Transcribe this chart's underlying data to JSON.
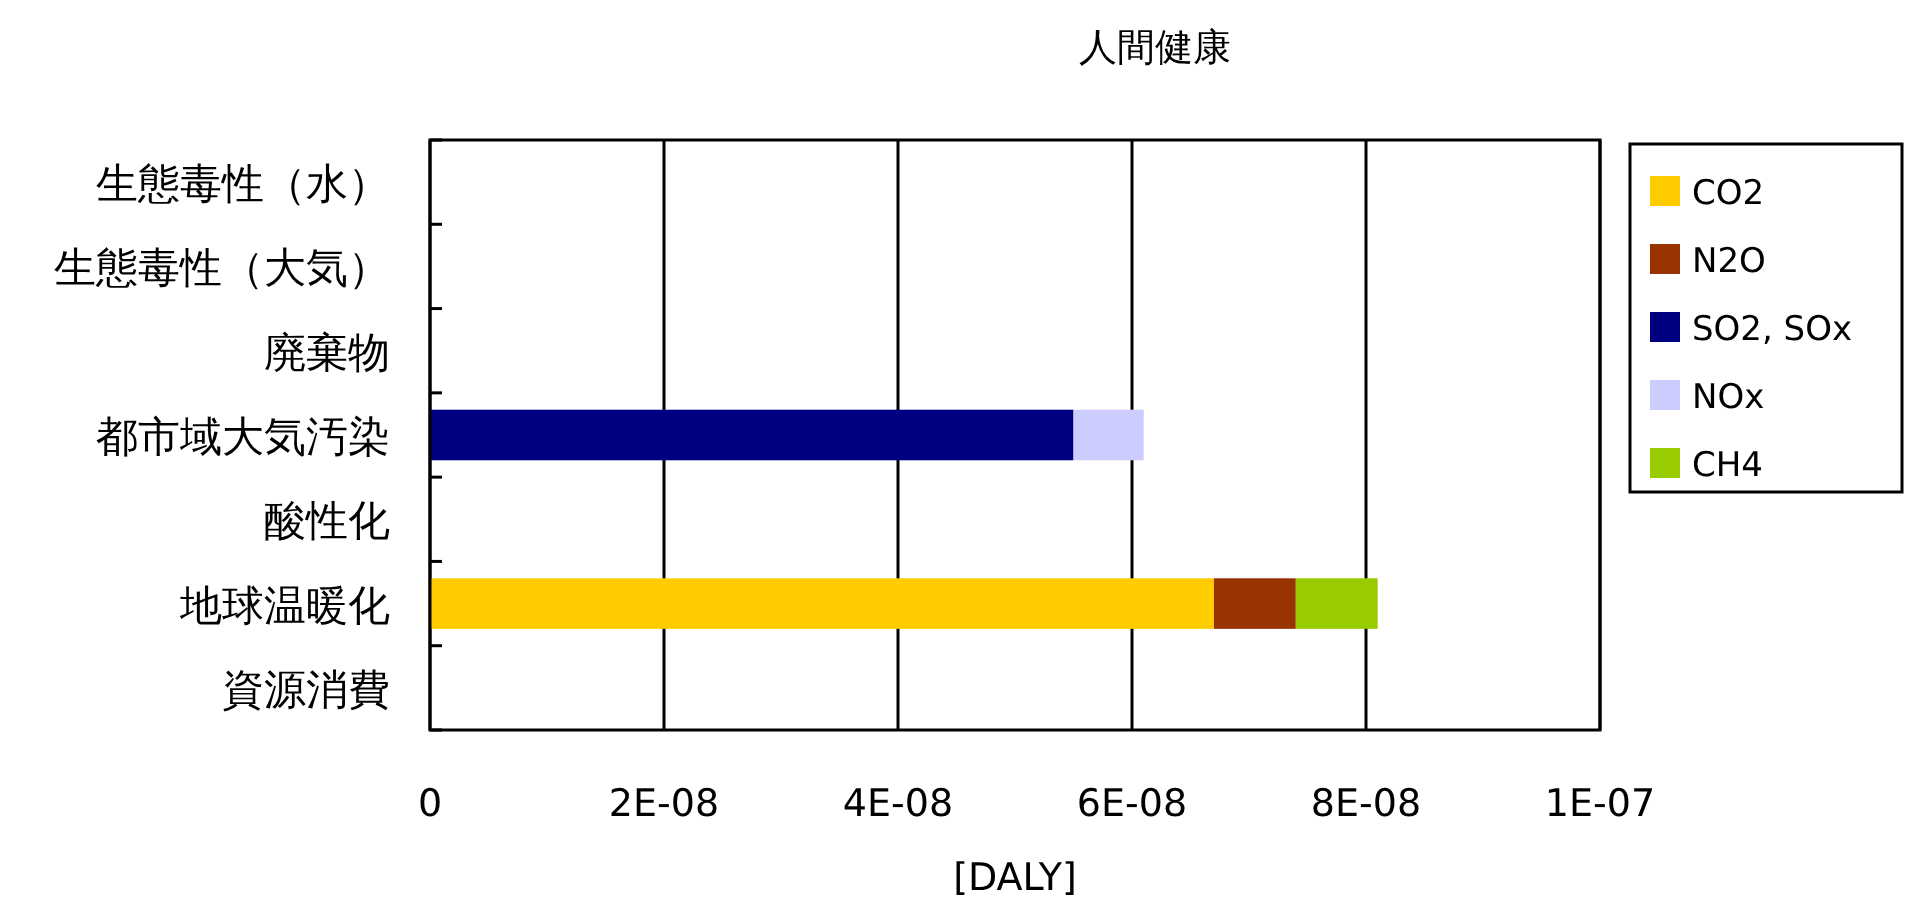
{
  "chart_data": {
    "type": "bar",
    "orientation": "horizontal",
    "stacked": true,
    "title": "人間健康",
    "xlabel": "[DALY]",
    "categories": [
      "生態毒性（水）",
      "生態毒性（大気）",
      "廃棄物",
      "都市域大気汚染",
      "酸性化",
      "地球温暖化",
      "資源消費"
    ],
    "series": [
      {
        "name": "CO2",
        "color": "#ffcc00",
        "values": [
          null,
          null,
          null,
          null,
          null,
          6.7e-08,
          null
        ]
      },
      {
        "name": "N2O",
        "color": "#993300",
        "values": [
          null,
          null,
          null,
          null,
          null,
          7e-09,
          null
        ]
      },
      {
        "name": "SO2, SOx",
        "color": "#000080",
        "values": [
          null,
          null,
          null,
          5.5e-08,
          null,
          null,
          null
        ]
      },
      {
        "name": "NOx",
        "color": "#ccccff",
        "values": [
          null,
          null,
          null,
          6e-09,
          null,
          null,
          null
        ]
      },
      {
        "name": "CH4",
        "color": "#99cc00",
        "values": [
          null,
          null,
          null,
          null,
          null,
          7e-09,
          null
        ]
      }
    ],
    "xlim": [
      0,
      1e-07
    ],
    "xticks": [
      0,
      {
        "value": 2e-08,
        "label": "2E-08"
      },
      {
        "value": 4e-08,
        "label": "4E-08"
      },
      {
        "value": 6e-08,
        "label": "6E-08"
      },
      {
        "value": 8e-08,
        "label": "8E-08"
      },
      {
        "value": 1e-07,
        "label": "1E-07"
      }
    ],
    "grid": "x",
    "legend": "right"
  }
}
